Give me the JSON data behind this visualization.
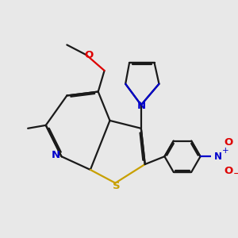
{
  "bg_color": "#e8e8e8",
  "bond_color": "#1a1a1a",
  "S_color": "#c8a000",
  "N_color": "#0000cc",
  "O_color": "#dd0000",
  "line_width": 1.6,
  "figsize": [
    3.0,
    3.0
  ],
  "dpi": 100,
  "xlim": [
    0,
    10
  ],
  "ylim": [
    0,
    10
  ]
}
